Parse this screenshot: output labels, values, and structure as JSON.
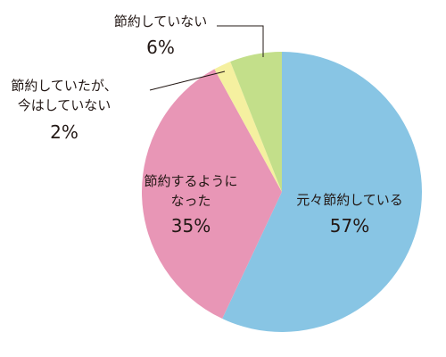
{
  "chart_data": {
    "type": "pie",
    "categories": [
      "元々節約している",
      "節約するように\nなった",
      "節約していたが、\n今はしていない",
      "節約していない"
    ],
    "values": [
      57,
      35,
      2,
      6
    ],
    "value_labels": [
      "57%",
      "35%",
      "2%",
      "6%"
    ],
    "colors": [
      "#88c5e4",
      "#e896b6",
      "#f5f0a0",
      "#c3df8a"
    ]
  }
}
